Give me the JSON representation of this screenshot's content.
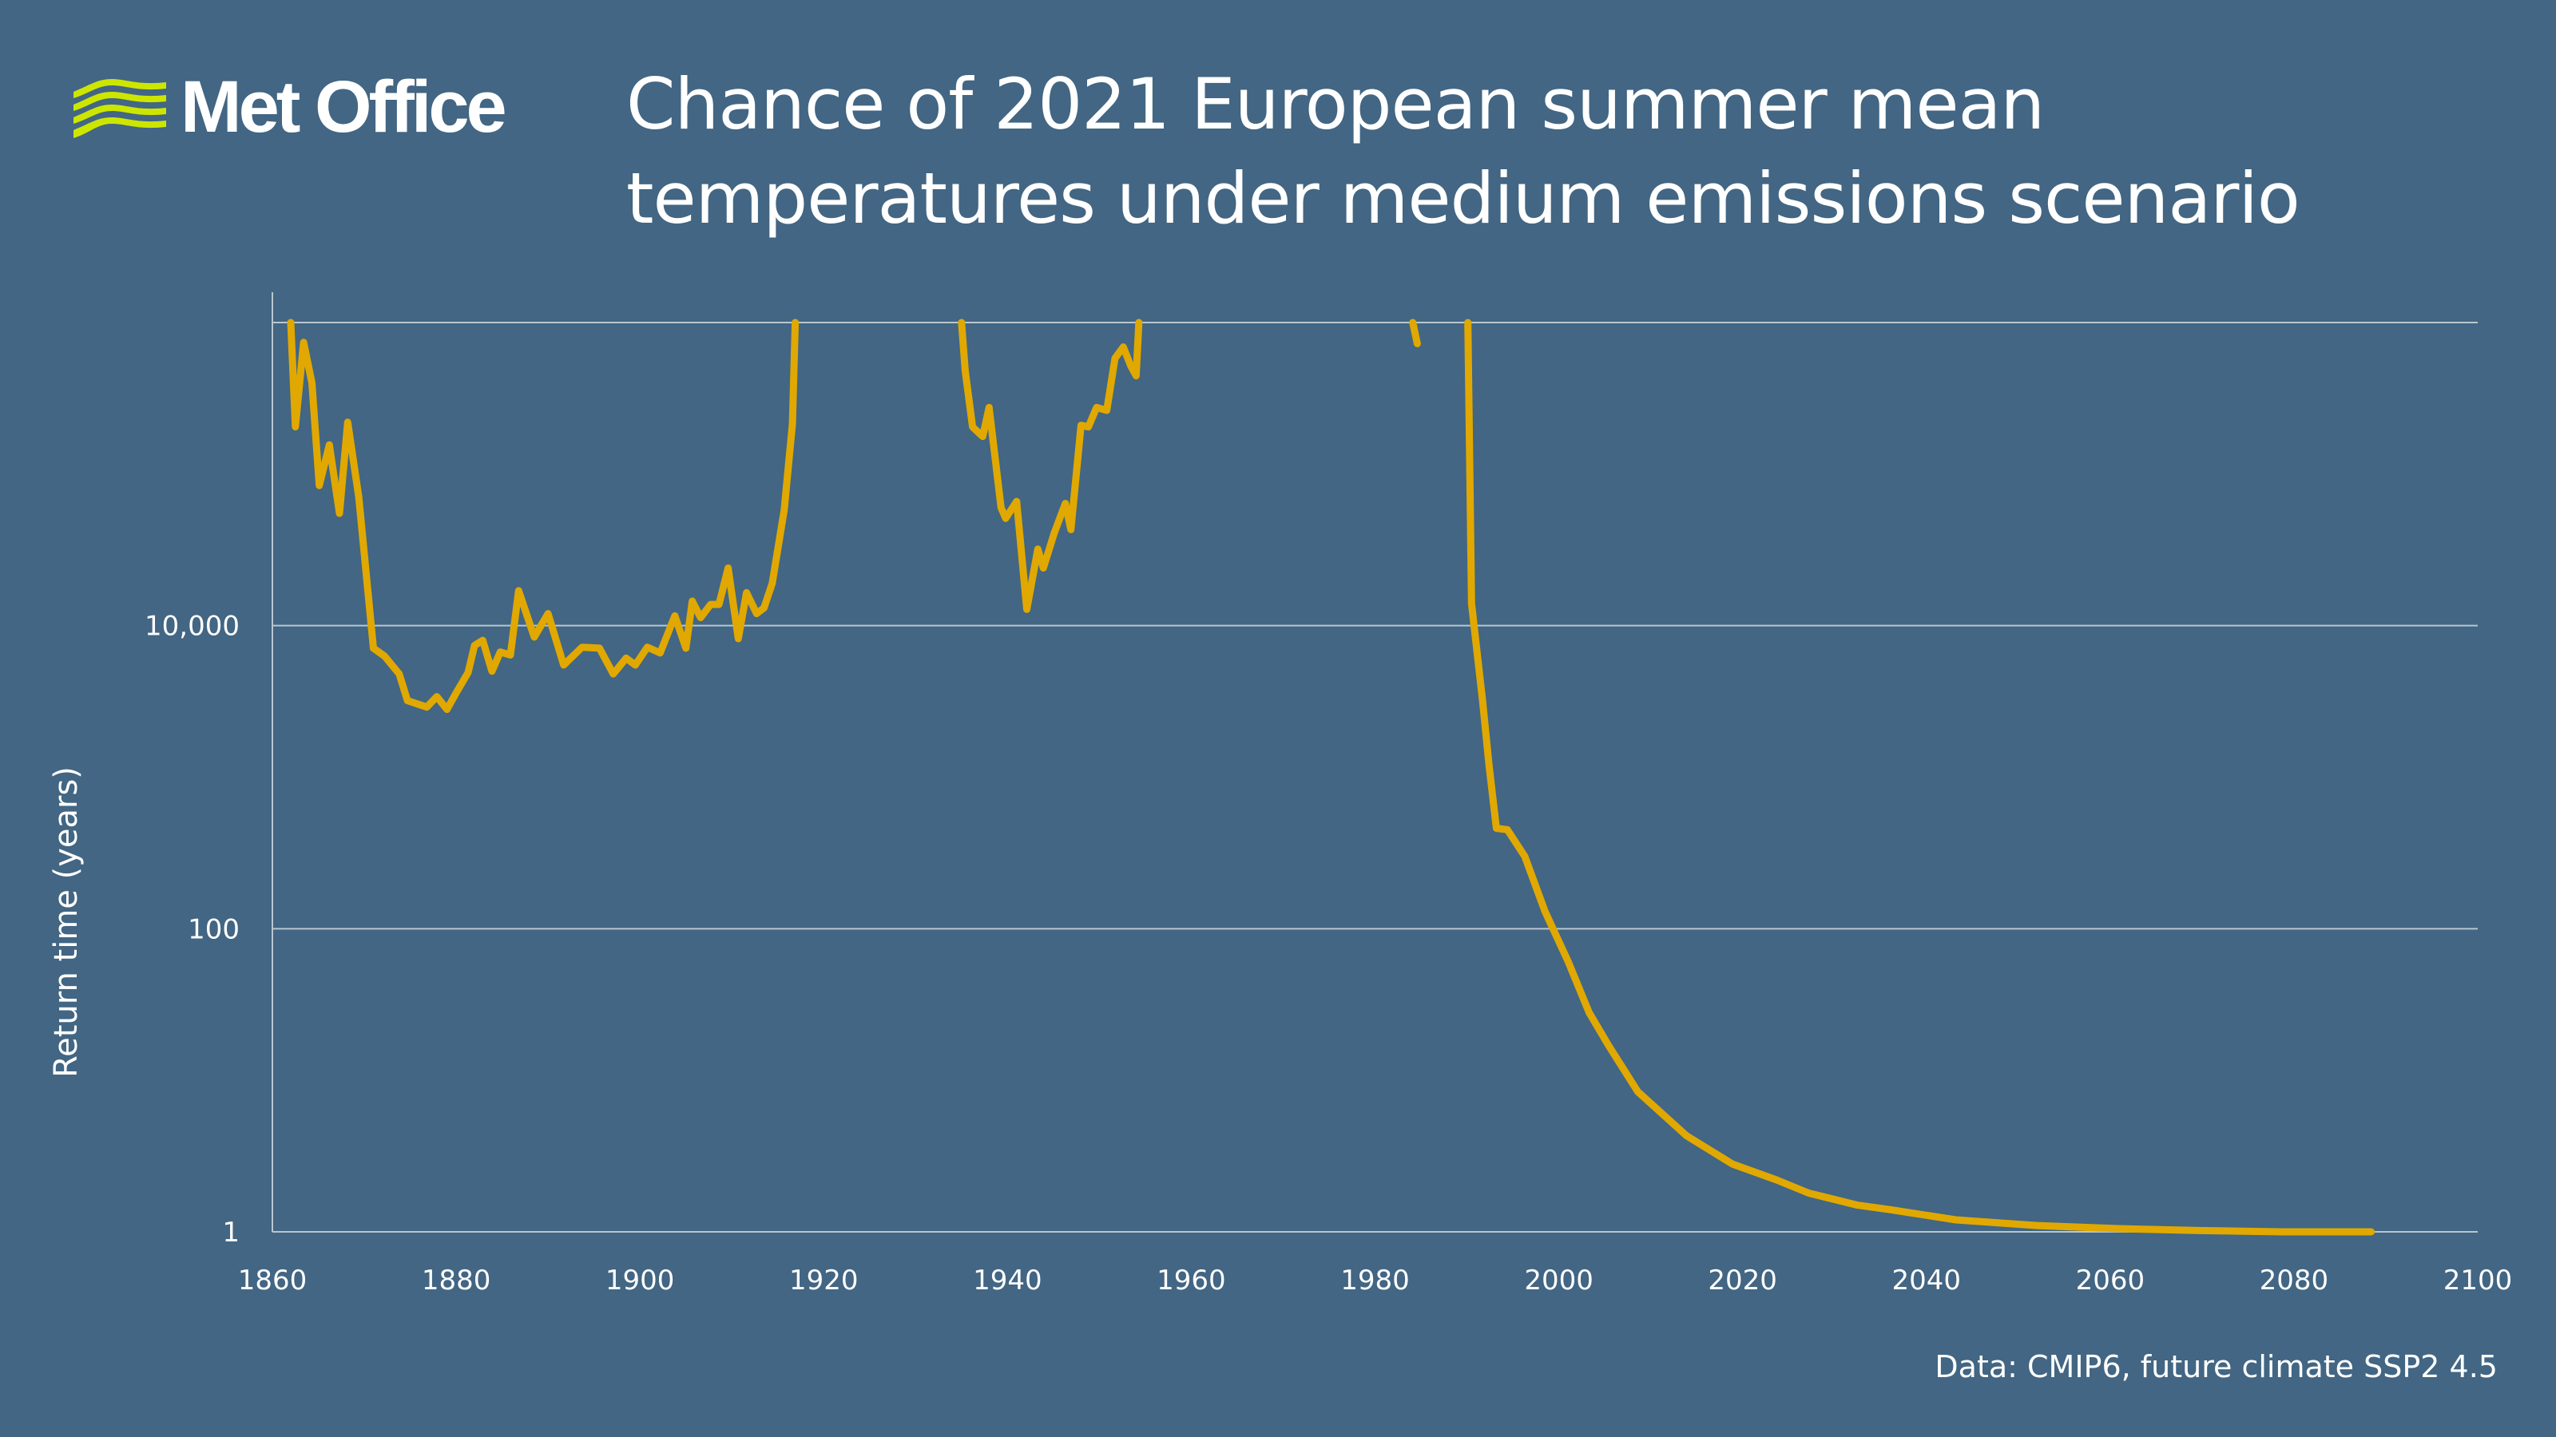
{
  "logo": {
    "text": "Met Office",
    "color": "#cde600"
  },
  "title": [
    "Chance of 2021 European summer mean",
    "temperatures under medium emissions scenario"
  ],
  "source": "Data: CMIP6, future climate SSP2 4.5",
  "colors": {
    "background": "#426683",
    "line": "#e0a800",
    "grid": "#b9c6d1"
  },
  "chart_data": {
    "type": "line",
    "title": "Chance of 2021 European summer mean temperatures under medium emissions scenario",
    "xlabel": "",
    "ylabel": "Return time (years)",
    "xlim": [
      1860,
      2100
    ],
    "ylim": [
      1,
      1000000
    ],
    "yscale": "log",
    "grid": "horizontal",
    "x_ticks": [
      1860,
      1880,
      1900,
      1920,
      1940,
      1960,
      1980,
      2000,
      2020,
      2040,
      2060,
      2080,
      2100
    ],
    "y_ticks": [
      1,
      100,
      10000,
      1000000
    ],
    "y_tick_labels": [
      "1",
      "100",
      "10,000",
      ""
    ],
    "segments": [
      {
        "x": [
          1862.0,
          1862.5,
          1863.4,
          1864.3,
          1865.1,
          1866.2,
          1867.3,
          1868.2,
          1869.4,
          1871.0,
          1872.2,
          1873.8,
          1874.7,
          1876.8,
          1877.9,
          1879.0,
          1880.0,
          1881.3,
          1882.0,
          1882.9,
          1883.9,
          1884.8,
          1885.9,
          1886.8,
          1888.5,
          1890.0,
          1891.7,
          1893.7,
          1895.6,
          1897.1,
          1898.5,
          1899.5,
          1900.8,
          1902.2,
          1903.8,
          1905.0,
          1905.7,
          1906.6,
          1907.7,
          1908.6,
          1909.6,
          1910.7,
          1911.6,
          1912.7,
          1913.5,
          1914.4,
          1915.7,
          1916.6,
          1916.9
        ],
        "y": [
          1000000,
          205000,
          740000,
          400000,
          84000,
          156000,
          55000,
          220000,
          71000,
          7100,
          6300,
          4800,
          3200,
          2900,
          3400,
          2800,
          3600,
          4900,
          7400,
          8000,
          5000,
          6700,
          6400,
          17000,
          8400,
          12000,
          5500,
          7200,
          7100,
          4800,
          6100,
          5500,
          7200,
          6600,
          11600,
          7100,
          14500,
          11300,
          13800,
          13800,
          24000,
          8200,
          16500,
          12000,
          13100,
          19000,
          58000,
          215000,
          1000000
        ]
      },
      {
        "x": [
          1935.0,
          1935.4,
          1936.2,
          1937.3,
          1938.0,
          1939.3,
          1939.8,
          1941.0,
          1942.1,
          1943.3,
          1943.9,
          1945.1,
          1946.3,
          1946.9,
          1948.0,
          1948.8,
          1949.7,
          1950.8,
          1951.7,
          1952.6,
          1953.4,
          1954.0,
          1954.3
        ],
        "y": [
          1000000,
          480000,
          205000,
          177000,
          275000,
          60000,
          51000,
          66000,
          12800,
          32000,
          24000,
          41000,
          64000,
          43000,
          210000,
          205000,
          275000,
          263000,
          580000,
          690000,
          520000,
          445000,
          1000000
        ]
      },
      {
        "x": [
          1984.1,
          1984.6
        ],
        "y": [
          1000000,
          725000
        ]
      },
      {
        "x": [
          1990.1,
          1990.5,
          1991.0,
          1991.7,
          1992.4,
          1993.2,
          1994.4,
          1996.3,
          1998.5,
          2001.0,
          2003.3,
          2005.4,
          2008.6,
          2013.9,
          2018.9,
          2023.7,
          2027.2,
          2032.5,
          2036.1,
          2043.2,
          2052.0,
          2060.9,
          2069.7,
          2078.6,
          2088.4
        ],
        "y": [
          1000000,
          14000,
          7600,
          3200,
          1200,
          460,
          450,
          300,
          130,
          61,
          28,
          17,
          8.4,
          4.3,
          2.8,
          2.2,
          1.8,
          1.5,
          1.4,
          1.2,
          1.1,
          1.05,
          1.02,
          1,
          1
        ]
      }
    ]
  }
}
